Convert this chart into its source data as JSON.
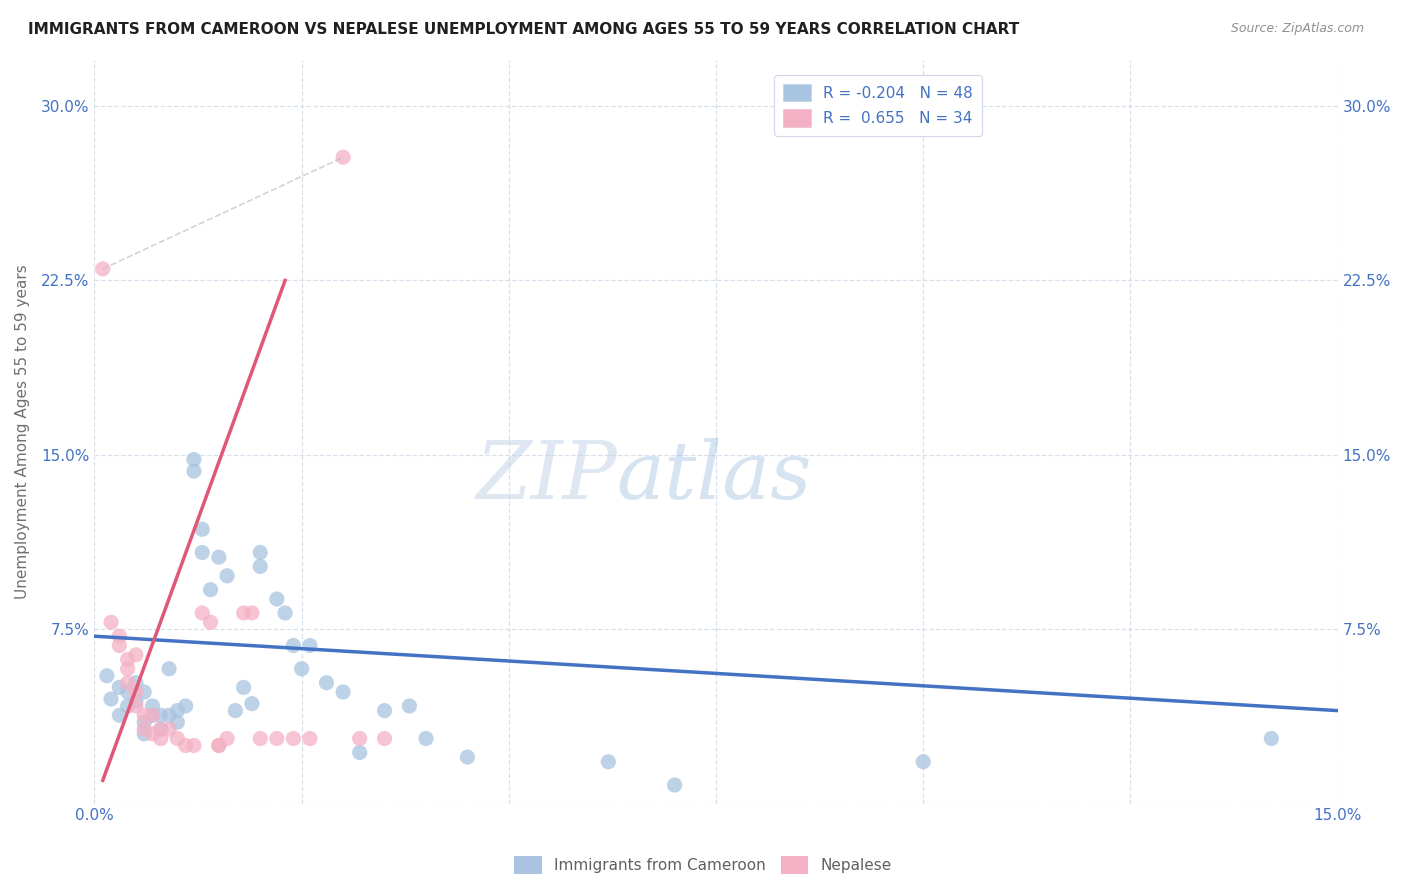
{
  "title": "IMMIGRANTS FROM CAMEROON VS NEPALESE UNEMPLOYMENT AMONG AGES 55 TO 59 YEARS CORRELATION CHART",
  "source": "Source: ZipAtlas.com",
  "ylabel": "Unemployment Among Ages 55 to 59 years",
  "xlim": [
    0.0,
    0.15
  ],
  "ylim": [
    0.0,
    0.32
  ],
  "xticks": [
    0.0,
    0.025,
    0.05,
    0.075,
    0.1,
    0.125,
    0.15
  ],
  "xtick_labels": [
    "0.0%",
    "",
    "",
    "",
    "",
    "",
    "15.0%"
  ],
  "yticks": [
    0.0,
    0.075,
    0.15,
    0.225,
    0.3
  ],
  "ytick_labels": [
    "",
    "7.5%",
    "15.0%",
    "22.5%",
    "30.0%"
  ],
  "watermark_zip": "ZIP",
  "watermark_atlas": "atlas",
  "legend_r1": "R = -0.204",
  "legend_n1": "N = 48",
  "legend_r2": "R =  0.655",
  "legend_n2": "N = 34",
  "color_blue": "#a8c4e0",
  "color_pink": "#f4b0c4",
  "line_blue": "#4472c4",
  "line_pink": "#e05878",
  "line_gray": "#c0c0c8",
  "blue_scatter": [
    [
      0.0015,
      0.055
    ],
    [
      0.002,
      0.045
    ],
    [
      0.003,
      0.05
    ],
    [
      0.003,
      0.038
    ],
    [
      0.004,
      0.048
    ],
    [
      0.004,
      0.042
    ],
    [
      0.005,
      0.052
    ],
    [
      0.005,
      0.044
    ],
    [
      0.006,
      0.048
    ],
    [
      0.006,
      0.035
    ],
    [
      0.006,
      0.03
    ],
    [
      0.007,
      0.042
    ],
    [
      0.007,
      0.038
    ],
    [
      0.008,
      0.038
    ],
    [
      0.008,
      0.032
    ],
    [
      0.009,
      0.058
    ],
    [
      0.009,
      0.038
    ],
    [
      0.01,
      0.04
    ],
    [
      0.01,
      0.035
    ],
    [
      0.011,
      0.042
    ],
    [
      0.012,
      0.148
    ],
    [
      0.012,
      0.143
    ],
    [
      0.013,
      0.118
    ],
    [
      0.013,
      0.108
    ],
    [
      0.014,
      0.092
    ],
    [
      0.015,
      0.106
    ],
    [
      0.016,
      0.098
    ],
    [
      0.017,
      0.04
    ],
    [
      0.018,
      0.05
    ],
    [
      0.019,
      0.043
    ],
    [
      0.02,
      0.108
    ],
    [
      0.02,
      0.102
    ],
    [
      0.022,
      0.088
    ],
    [
      0.023,
      0.082
    ],
    [
      0.024,
      0.068
    ],
    [
      0.025,
      0.058
    ],
    [
      0.026,
      0.068
    ],
    [
      0.028,
      0.052
    ],
    [
      0.03,
      0.048
    ],
    [
      0.032,
      0.022
    ],
    [
      0.035,
      0.04
    ],
    [
      0.038,
      0.042
    ],
    [
      0.04,
      0.028
    ],
    [
      0.045,
      0.02
    ],
    [
      0.062,
      0.018
    ],
    [
      0.07,
      0.008
    ],
    [
      0.1,
      0.018
    ],
    [
      0.142,
      0.028
    ]
  ],
  "pink_scatter": [
    [
      0.001,
      0.23
    ],
    [
      0.002,
      0.078
    ],
    [
      0.003,
      0.072
    ],
    [
      0.003,
      0.068
    ],
    [
      0.004,
      0.062
    ],
    [
      0.004,
      0.058
    ],
    [
      0.004,
      0.052
    ],
    [
      0.005,
      0.064
    ],
    [
      0.005,
      0.048
    ],
    [
      0.005,
      0.042
    ],
    [
      0.006,
      0.038
    ],
    [
      0.006,
      0.032
    ],
    [
      0.007,
      0.038
    ],
    [
      0.007,
      0.03
    ],
    [
      0.008,
      0.032
    ],
    [
      0.008,
      0.028
    ],
    [
      0.009,
      0.032
    ],
    [
      0.01,
      0.028
    ],
    [
      0.011,
      0.025
    ],
    [
      0.012,
      0.025
    ],
    [
      0.013,
      0.082
    ],
    [
      0.014,
      0.078
    ],
    [
      0.015,
      0.025
    ],
    [
      0.015,
      0.025
    ],
    [
      0.016,
      0.028
    ],
    [
      0.018,
      0.082
    ],
    [
      0.019,
      0.082
    ],
    [
      0.02,
      0.028
    ],
    [
      0.022,
      0.028
    ],
    [
      0.024,
      0.028
    ],
    [
      0.026,
      0.028
    ],
    [
      0.03,
      0.278
    ],
    [
      0.032,
      0.028
    ],
    [
      0.035,
      0.028
    ]
  ],
  "blue_trend_x": [
    0.0,
    0.15
  ],
  "blue_trend_y": [
    0.072,
    0.04
  ],
  "pink_trend_x": [
    0.001,
    0.023
  ],
  "pink_trend_y": [
    0.01,
    0.225
  ],
  "gray_trend_x": [
    0.001,
    0.03
  ],
  "gray_trend_y": [
    0.23,
    0.278
  ],
  "background_color": "#ffffff",
  "grid_color": "#d8e0ec",
  "title_color": "#202020",
  "axis_label_color": "#707070",
  "ytick_color": "#4472c4",
  "xtick_color": "#4472c4"
}
